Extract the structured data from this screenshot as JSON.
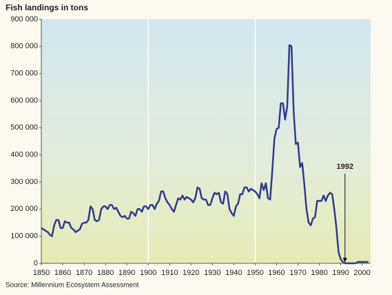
{
  "chart_data": {
    "type": "line",
    "title": "Fish landings in tons",
    "source": "Source: Millennium Ecosystem Assessment",
    "x": [
      1850,
      1851,
      1852,
      1853,
      1854,
      1855,
      1856,
      1857,
      1858,
      1859,
      1860,
      1861,
      1862,
      1863,
      1864,
      1865,
      1866,
      1867,
      1868,
      1869,
      1870,
      1871,
      1872,
      1873,
      1874,
      1875,
      1876,
      1877,
      1878,
      1879,
      1880,
      1881,
      1882,
      1883,
      1884,
      1885,
      1886,
      1887,
      1888,
      1889,
      1890,
      1891,
      1892,
      1893,
      1894,
      1895,
      1896,
      1897,
      1898,
      1899,
      1900,
      1901,
      1902,
      1903,
      1904,
      1905,
      1906,
      1907,
      1908,
      1909,
      1910,
      1911,
      1912,
      1913,
      1914,
      1915,
      1916,
      1917,
      1918,
      1919,
      1920,
      1921,
      1922,
      1923,
      1924,
      1925,
      1926,
      1927,
      1928,
      1929,
      1930,
      1931,
      1932,
      1933,
      1934,
      1935,
      1936,
      1937,
      1938,
      1939,
      1940,
      1941,
      1942,
      1943,
      1944,
      1945,
      1946,
      1947,
      1948,
      1949,
      1950,
      1951,
      1952,
      1953,
      1954,
      1955,
      1956,
      1957,
      1958,
      1959,
      1960,
      1961,
      1962,
      1963,
      1964,
      1965,
      1966,
      1967,
      1968,
      1969,
      1970,
      1971,
      1972,
      1973,
      1974,
      1975,
      1976,
      1977,
      1978,
      1979,
      1980,
      1981,
      1982,
      1983,
      1984,
      1985,
      1986,
      1987,
      1988,
      1989,
      1990,
      1991,
      1992,
      1993,
      1994,
      1995,
      1996,
      1997,
      1998,
      1999,
      2000,
      2001,
      2002,
      2003
    ],
    "series": [
      {
        "color": "#2e3a8c",
        "values": [
          130000,
          125000,
          120000,
          115000,
          105000,
          100000,
          140000,
          160000,
          160000,
          130000,
          130000,
          155000,
          150000,
          150000,
          130000,
          125000,
          115000,
          120000,
          125000,
          145000,
          150000,
          150000,
          160000,
          210000,
          200000,
          160000,
          155000,
          160000,
          200000,
          210000,
          210000,
          200000,
          215000,
          215000,
          200000,
          205000,
          190000,
          175000,
          170000,
          175000,
          165000,
          165000,
          190000,
          185000,
          175000,
          200000,
          200000,
          190000,
          210000,
          210000,
          200000,
          215000,
          215000,
          200000,
          220000,
          230000,
          265000,
          265000,
          240000,
          225000,
          215000,
          200000,
          190000,
          215000,
          240000,
          235000,
          250000,
          235000,
          245000,
          240000,
          235000,
          225000,
          240000,
          280000,
          275000,
          240000,
          235000,
          235000,
          215000,
          215000,
          240000,
          260000,
          255000,
          260000,
          225000,
          220000,
          265000,
          255000,
          200000,
          185000,
          175000,
          210000,
          220000,
          255000,
          255000,
          280000,
          280000,
          265000,
          275000,
          270000,
          265000,
          255000,
          240000,
          295000,
          270000,
          295000,
          240000,
          235000,
          340000,
          460000,
          495000,
          500000,
          590000,
          590000,
          530000,
          580000,
          805000,
          800000,
          560000,
          440000,
          445000,
          355000,
          370000,
          290000,
          200000,
          150000,
          140000,
          165000,
          170000,
          230000,
          230000,
          230000,
          250000,
          230000,
          250000,
          260000,
          255000,
          200000,
          130000,
          40000,
          15000,
          5000,
          0,
          0,
          0,
          0,
          0,
          0,
          5000,
          5000,
          5000,
          5000,
          5000,
          5000
        ]
      }
    ],
    "xlim": [
      1850,
      2004
    ],
    "xticks": [
      1850,
      1860,
      1870,
      1880,
      1890,
      1900,
      1910,
      1920,
      1930,
      1940,
      1950,
      1960,
      1970,
      1980,
      1990,
      2000
    ],
    "xgrid": [
      1900,
      1950
    ],
    "ylim": [
      0,
      900000
    ],
    "yticks": [
      0,
      {
        "value": 100000,
        "label": "100 000"
      },
      {
        "value": 200000,
        "label": "200 000"
      },
      {
        "value": 300000,
        "label": "300 000"
      },
      {
        "value": 400000,
        "label": "400 000"
      },
      {
        "value": 500000,
        "label": "500 000"
      },
      {
        "value": 600000,
        "label": "600 000"
      },
      {
        "value": 700000,
        "label": "700 000"
      },
      {
        "value": 800000,
        "label": "800 000"
      },
      {
        "value": 900000,
        "label": "900 000"
      }
    ],
    "annotation": {
      "x": 1992,
      "y": 0
    }
  }
}
